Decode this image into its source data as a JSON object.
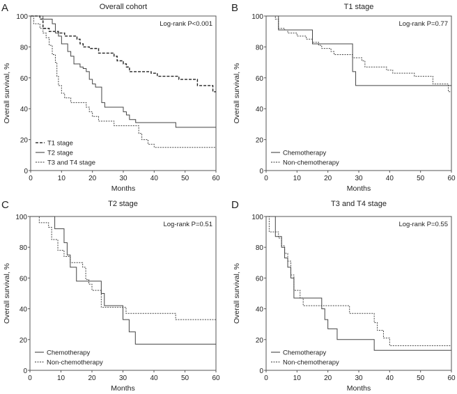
{
  "chart_data": [
    {
      "panel": "A",
      "type": "line",
      "title": "Overall cohort",
      "annotation": "Log-rank P<0.001",
      "xlabel": "Months",
      "ylabel": "Overall survival, %",
      "xlim": [
        0,
        60
      ],
      "ylim": [
        0,
        100
      ],
      "xticks": [
        "0",
        "10",
        "20",
        "30",
        "40",
        "50",
        "60"
      ],
      "yticks": [
        "0",
        "20",
        "40",
        "60",
        "80",
        "100"
      ],
      "legend_position": "bottom-left",
      "series": [
        {
          "name": "T1 stage",
          "style": "dashed",
          "steps": [
            [
              0,
              100
            ],
            [
              3,
              98
            ],
            [
              4,
              92
            ],
            [
              6,
              90
            ],
            [
              9,
              89
            ],
            [
              11,
              87
            ],
            [
              15,
              85
            ],
            [
              16,
              82
            ],
            [
              17,
              80
            ],
            [
              19,
              79
            ],
            [
              22,
              76
            ],
            [
              27,
              74
            ],
            [
              28,
              71
            ],
            [
              30,
              69
            ],
            [
              31,
              67
            ],
            [
              32,
              64
            ],
            [
              39,
              63
            ],
            [
              41,
              61
            ],
            [
              48,
              59
            ],
            [
              54,
              55
            ],
            [
              59,
              51
            ],
            [
              60,
              51
            ]
          ]
        },
        {
          "name": "T2 stage",
          "style": "solid",
          "steps": [
            [
              0,
              100
            ],
            [
              4,
              98
            ],
            [
              7,
              95
            ],
            [
              8,
              89
            ],
            [
              9,
              87
            ],
            [
              10,
              82
            ],
            [
              12,
              77
            ],
            [
              13,
              74
            ],
            [
              14,
              69
            ],
            [
              16,
              67
            ],
            [
              17,
              66
            ],
            [
              18,
              64
            ],
            [
              19,
              59
            ],
            [
              20,
              56
            ],
            [
              21,
              54
            ],
            [
              23,
              44
            ],
            [
              24,
              41
            ],
            [
              30,
              38
            ],
            [
              31,
              36
            ],
            [
              32,
              33
            ],
            [
              34,
              31
            ],
            [
              47,
              28
            ],
            [
              60,
              28
            ]
          ]
        },
        {
          "name": "T3 and T4 stage",
          "style": "dotted",
          "steps": [
            [
              0,
              100
            ],
            [
              1,
              95
            ],
            [
              3,
              92
            ],
            [
              4,
              89
            ],
            [
              5,
              86
            ],
            [
              6,
              81
            ],
            [
              7,
              75
            ],
            [
              8,
              70
            ],
            [
              8.5,
              61
            ],
            [
              9,
              55
            ],
            [
              10,
              50
            ],
            [
              11,
              47
            ],
            [
              13,
              44
            ],
            [
              18,
              41
            ],
            [
              19,
              38
            ],
            [
              20,
              35
            ],
            [
              22,
              32
            ],
            [
              27,
              29
            ],
            [
              35,
              24
            ],
            [
              36,
              20
            ],
            [
              38,
              17
            ],
            [
              40,
              15
            ],
            [
              60,
              15
            ]
          ]
        }
      ]
    },
    {
      "panel": "B",
      "type": "line",
      "title": "T1 stage",
      "annotation": "Log-rank P=0.77",
      "xlabel": "Months",
      "ylabel": "Overall survival, %",
      "xlim": [
        0,
        60
      ],
      "ylim": [
        0,
        100
      ],
      "xticks": [
        "0",
        "10",
        "20",
        "30",
        "40",
        "50",
        "60"
      ],
      "yticks": [
        "0",
        "20",
        "40",
        "60",
        "80",
        "100"
      ],
      "legend_position": "bottom-left",
      "series": [
        {
          "name": "Chemotherapy",
          "style": "solid",
          "steps": [
            [
              0,
              100
            ],
            [
              4,
              91
            ],
            [
              15,
              82
            ],
            [
              28,
              64
            ],
            [
              29,
              55
            ],
            [
              60,
              55
            ]
          ]
        },
        {
          "name": "Non-chemotherapy",
          "style": "dotted",
          "steps": [
            [
              0,
              100
            ],
            [
              3,
              98
            ],
            [
              4,
              92
            ],
            [
              6,
              91
            ],
            [
              7,
              89
            ],
            [
              10,
              87
            ],
            [
              13,
              85
            ],
            [
              15,
              83
            ],
            [
              17,
              81
            ],
            [
              18,
              79
            ],
            [
              21,
              77
            ],
            [
              22,
              75
            ],
            [
              28,
              73
            ],
            [
              31,
              71
            ],
            [
              32,
              67
            ],
            [
              39,
              65
            ],
            [
              41,
              63
            ],
            [
              48,
              61
            ],
            [
              54,
              56
            ],
            [
              59,
              51
            ],
            [
              60,
              51
            ]
          ]
        }
      ]
    },
    {
      "panel": "C",
      "type": "line",
      "title": "T2 stage",
      "annotation": "Log-rank P=0.51",
      "xlabel": "Months",
      "ylabel": "Overall survival, %",
      "xlim": [
        0,
        60
      ],
      "ylim": [
        0,
        100
      ],
      "xticks": [
        "0",
        "10",
        "20",
        "30",
        "40",
        "50",
        "60"
      ],
      "yticks": [
        "0",
        "20",
        "40",
        "60",
        "80",
        "100"
      ],
      "legend_position": "bottom-left",
      "series": [
        {
          "name": "Chemotherapy",
          "style": "solid",
          "steps": [
            [
              0,
              100
            ],
            [
              8,
              92
            ],
            [
              11,
              83
            ],
            [
              12,
              75
            ],
            [
              13,
              67
            ],
            [
              15,
              58
            ],
            [
              23,
              50
            ],
            [
              24,
              42
            ],
            [
              30,
              33
            ],
            [
              32,
              25
            ],
            [
              34,
              17
            ],
            [
              60,
              17
            ]
          ]
        },
        {
          "name": "Non-chemotherapy",
          "style": "dotted",
          "steps": [
            [
              0,
              100
            ],
            [
              3,
              96
            ],
            [
              6,
              93
            ],
            [
              7,
              85
            ],
            [
              9,
              78
            ],
            [
              11,
              74
            ],
            [
              13,
              70
            ],
            [
              17,
              67
            ],
            [
              18,
              59
            ],
            [
              19,
              56
            ],
            [
              20,
              52
            ],
            [
              23,
              41
            ],
            [
              31,
              37
            ],
            [
              47,
              33
            ],
            [
              60,
              33
            ]
          ]
        }
      ]
    },
    {
      "panel": "D",
      "type": "line",
      "title": "T3 and T4 stage",
      "annotation": "Log-rank P=0.55",
      "xlabel": "Months",
      "ylabel": "Overall survival, %",
      "xlim": [
        0,
        60
      ],
      "ylim": [
        0,
        100
      ],
      "xticks": [
        "0",
        "10",
        "20",
        "30",
        "40",
        "50",
        "60"
      ],
      "yticks": [
        "0",
        "20",
        "40",
        "60",
        "80",
        "100"
      ],
      "legend_position": "bottom-left",
      "series": [
        {
          "name": "Chemotherapy",
          "style": "solid",
          "steps": [
            [
              0,
              100
            ],
            [
              3,
              87
            ],
            [
              5,
              80
            ],
            [
              6,
              73
            ],
            [
              7,
              67
            ],
            [
              8,
              60
            ],
            [
              9,
              47
            ],
            [
              18,
              40
            ],
            [
              19,
              33
            ],
            [
              20,
              27
            ],
            [
              23,
              20
            ],
            [
              35,
              13
            ],
            [
              60,
              13
            ]
          ]
        },
        {
          "name": "Non-chemotherapy",
          "style": "dotted",
          "steps": [
            [
              0,
              100
            ],
            [
              1,
              90
            ],
            [
              4,
              86
            ],
            [
              5,
              81
            ],
            [
              6,
              76
            ],
            [
              7,
              71
            ],
            [
              8,
              62
            ],
            [
              9,
              52
            ],
            [
              11,
              47
            ],
            [
              12,
              42
            ],
            [
              27,
              37
            ],
            [
              35,
              31
            ],
            [
              36,
              26
            ],
            [
              38,
              21
            ],
            [
              40,
              16
            ],
            [
              60,
              16
            ]
          ]
        }
      ]
    }
  ]
}
